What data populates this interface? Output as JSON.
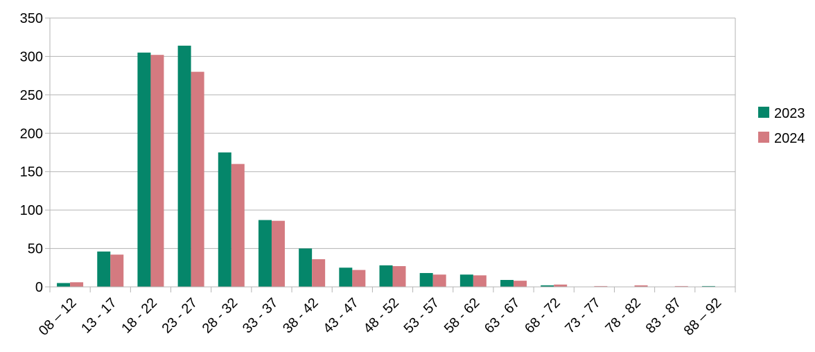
{
  "chart_data": {
    "type": "bar",
    "title": "",
    "xlabel": "",
    "ylabel": "",
    "categories": [
      "08 – 12",
      "13 - 17",
      "18 - 22",
      "23 - 27",
      "28 - 32",
      "33 - 37",
      "38 - 42",
      "43 - 47",
      "48 - 52",
      "53 - 57",
      "58 - 62",
      "63 - 67",
      "68 - 72",
      "73 - 77",
      "78 - 82",
      "83 - 87",
      "88 – 92"
    ],
    "series": [
      {
        "name": "2023",
        "color": "#05866a",
        "values": [
          5,
          46,
          305,
          314,
          175,
          87,
          50,
          25,
          28,
          18,
          16,
          9,
          2,
          0,
          0,
          0,
          1
        ]
      },
      {
        "name": "2024",
        "color": "#d47a80",
        "values": [
          6,
          42,
          302,
          280,
          160,
          86,
          36,
          22,
          27,
          16,
          15,
          8,
          3,
          1,
          2,
          1,
          0
        ]
      }
    ],
    "ylim": [
      0,
      350
    ],
    "yticks": [
      0,
      50,
      100,
      150,
      200,
      250,
      300,
      350
    ],
    "grid": true,
    "legend_position": "right"
  }
}
